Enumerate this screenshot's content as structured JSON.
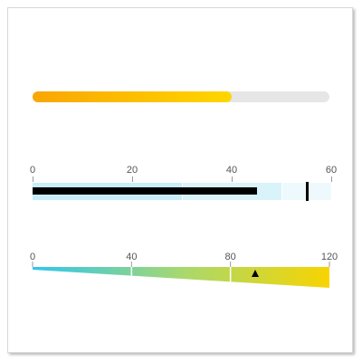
{
  "colors": {
    "progress_start": "#f9a602",
    "progress_end": "#ffd600",
    "progress_track": "#e6e6e6",
    "bullet_range_1": "#c8eef9",
    "bullet_range_2": "#d9f3fb",
    "bullet_range_3": "#eef9fd",
    "bullet_bar": "#000000",
    "gauge_start": "#2ec6ef",
    "gauge_mid": "#a7d86f",
    "gauge_end": "#f8d400"
  },
  "progress": {
    "value": 0.67
  },
  "bullet": {
    "min": 0,
    "max": 60,
    "ticks": [
      "0",
      "20",
      "40",
      "60"
    ],
    "tick_values": [
      0,
      20,
      40,
      60
    ],
    "ranges": [
      30,
      50,
      60
    ],
    "value": 45,
    "target": 55
  },
  "gauge": {
    "min": 0,
    "max": 120,
    "ticks": [
      "0",
      "40",
      "80",
      "120"
    ],
    "tick_values": [
      0,
      40,
      80,
      120
    ],
    "pointer_value": 90
  }
}
